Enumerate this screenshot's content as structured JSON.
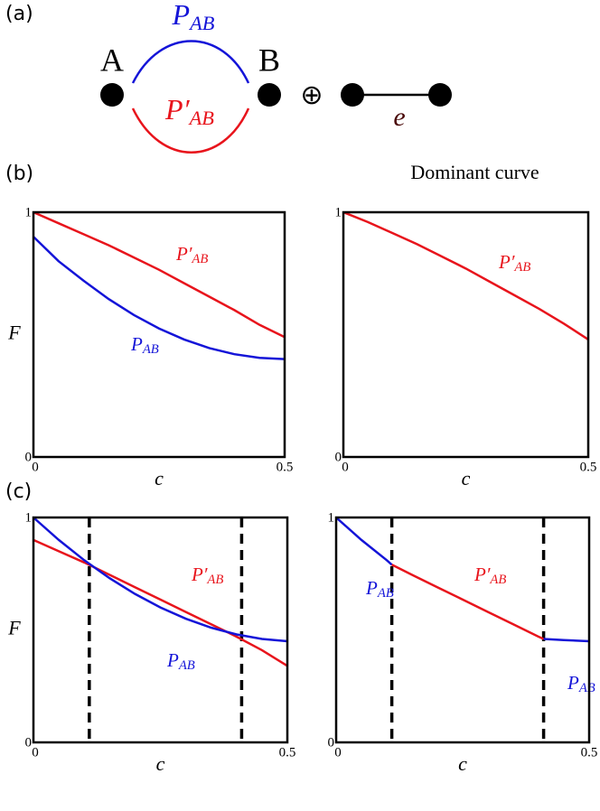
{
  "panel_labels": [
    "(a)",
    "(b)",
    "(c)"
  ],
  "diagram": {
    "node_labels": [
      "A",
      "B"
    ],
    "path_labels": [
      "PAB",
      "P′AB"
    ],
    "operator": "⊕",
    "edge_label": "e"
  },
  "chart_data": [
    {
      "type": "line",
      "xlabel": "c",
      "ylabel": "F",
      "xlim": [
        0,
        0.5
      ],
      "ylim": [
        0,
        1
      ],
      "xticks": [
        0,
        0.5
      ],
      "yticks": [
        0,
        1
      ],
      "x": [
        0,
        0.05,
        0.1,
        0.15,
        0.2,
        0.25,
        0.3,
        0.35,
        0.4,
        0.45,
        0.5
      ],
      "series": [
        {
          "name": "P′AB",
          "color": "#e8141c",
          "values": [
            1,
            0.955,
            0.91,
            0.865,
            0.815,
            0.765,
            0.71,
            0.655,
            0.6,
            0.54,
            0.49
          ]
        },
        {
          "name": "PAB",
          "color": "#1414d8",
          "values": [
            0.9,
            0.8,
            0.72,
            0.645,
            0.58,
            0.525,
            0.48,
            0.445,
            0.42,
            0.405,
            0.4
          ]
        }
      ]
    },
    {
      "type": "line",
      "title": "Dominant curve",
      "xlabel": "c",
      "xlim": [
        0,
        0.5
      ],
      "ylim": [
        0,
        1
      ],
      "xticks": [
        0,
        0.5
      ],
      "yticks": [
        0,
        1
      ],
      "x": [
        0,
        0.05,
        0.1,
        0.15,
        0.2,
        0.25,
        0.3,
        0.35,
        0.4,
        0.45,
        0.5
      ],
      "series": [
        {
          "name": "P′AB",
          "color": "#e8141c",
          "values": [
            1,
            0.96,
            0.915,
            0.87,
            0.82,
            0.77,
            0.715,
            0.66,
            0.605,
            0.545,
            0.48
          ]
        }
      ]
    },
    {
      "type": "line",
      "xlabel": "c",
      "ylabel": "F",
      "xlim": [
        0,
        0.5
      ],
      "ylim": [
        0,
        1
      ],
      "xticks": [
        0,
        0.5
      ],
      "yticks": [
        0,
        1
      ],
      "x": [
        0,
        0.05,
        0.1,
        0.15,
        0.2,
        0.25,
        0.3,
        0.35,
        0.4,
        0.45,
        0.5
      ],
      "vlines": [
        0.11,
        0.41
      ],
      "series": [
        {
          "name": "P′AB",
          "color": "#e8141c",
          "values": [
            0.9,
            0.85,
            0.8,
            0.745,
            0.69,
            0.635,
            0.58,
            0.525,
            0.47,
            0.41,
            0.34
          ]
        },
        {
          "name": "PAB",
          "color": "#1414d8",
          "values": [
            1,
            0.9,
            0.81,
            0.73,
            0.66,
            0.6,
            0.55,
            0.51,
            0.48,
            0.46,
            0.45
          ]
        }
      ]
    },
    {
      "type": "line",
      "xlabel": "c",
      "xlim": [
        0,
        0.5
      ],
      "ylim": [
        0,
        1
      ],
      "xticks": [
        0,
        0.5
      ],
      "yticks": [
        0,
        1
      ],
      "vlines": [
        0.11,
        0.41
      ],
      "series": [
        {
          "name": "PAB",
          "color": "#1414d8",
          "x": [
            0,
            0.05,
            0.1,
            0.11
          ],
          "values": [
            1,
            0.9,
            0.81,
            0.79
          ]
        },
        {
          "name": "P′AB",
          "color": "#e8141c",
          "x": [
            0.11,
            0.15,
            0.2,
            0.25,
            0.3,
            0.35,
            0.4,
            0.41
          ],
          "values": [
            0.79,
            0.745,
            0.69,
            0.635,
            0.58,
            0.525,
            0.47,
            0.46
          ]
        },
        {
          "name": "PAB",
          "color": "#1414d8",
          "x": [
            0.41,
            0.45,
            0.5
          ],
          "values": [
            0.46,
            0.455,
            0.45
          ]
        }
      ]
    }
  ]
}
